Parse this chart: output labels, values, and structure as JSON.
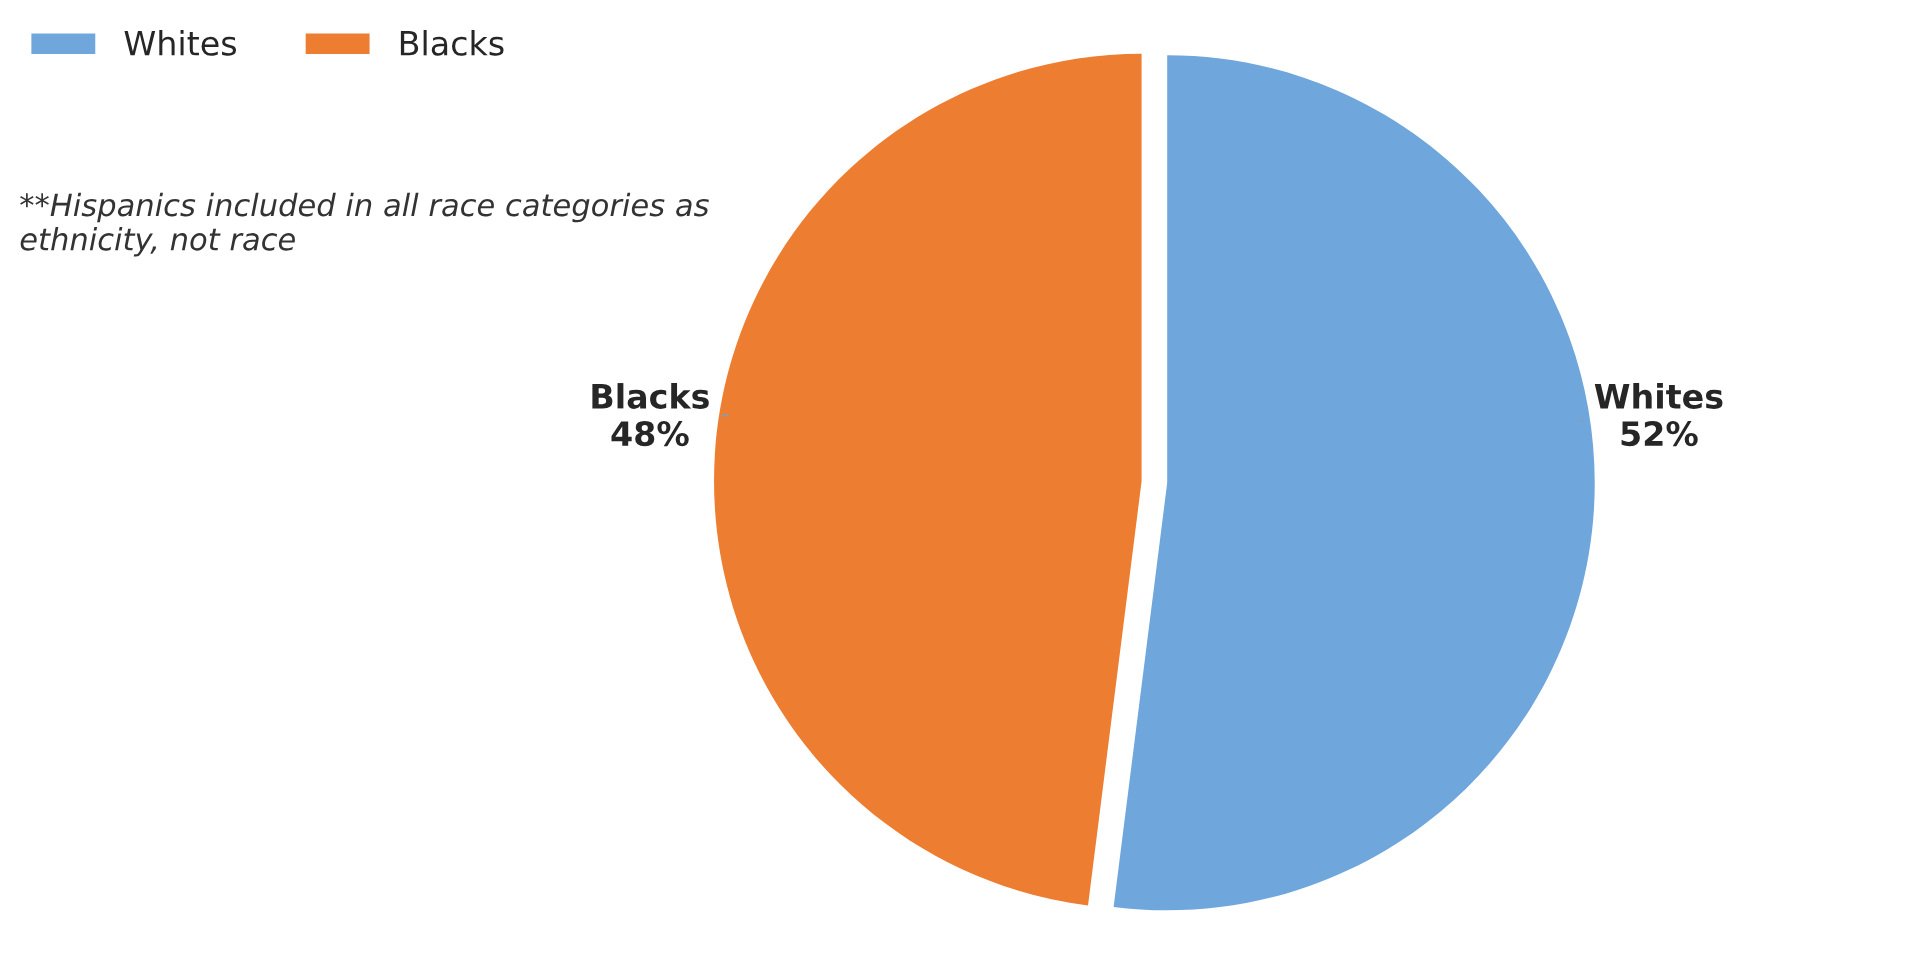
{
  "chart_data": {
    "type": "pie",
    "categories": [
      "Whites",
      "Blacks"
    ],
    "values": [
      52,
      48
    ],
    "colors": [
      "#6fa6dc",
      "#ed7d31"
    ],
    "value_labels": [
      "52%",
      "48%"
    ],
    "legend": "top left",
    "annotations": [
      "**Hispanics included in all race categories as ethnicity, not race"
    ]
  }
}
